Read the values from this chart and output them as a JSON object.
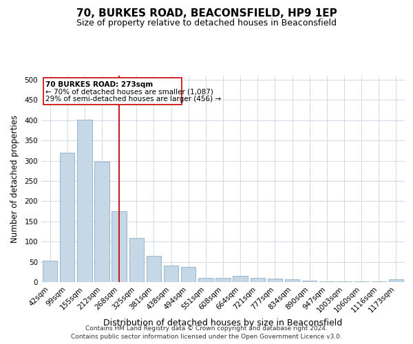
{
  "title": "70, BURKES ROAD, BEACONSFIELD, HP9 1EP",
  "subtitle": "Size of property relative to detached houses in Beaconsfield",
  "xlabel": "Distribution of detached houses by size in Beaconsfield",
  "ylabel": "Number of detached properties",
  "footnote1": "Contains HM Land Registry data © Crown copyright and database right 2024.",
  "footnote2": "Contains public sector information licensed under the Open Government Licence v3.0.",
  "categories": [
    "42sqm",
    "99sqm",
    "155sqm",
    "212sqm",
    "268sqm",
    "325sqm",
    "381sqm",
    "438sqm",
    "494sqm",
    "551sqm",
    "608sqm",
    "664sqm",
    "721sqm",
    "777sqm",
    "834sqm",
    "890sqm",
    "947sqm",
    "1003sqm",
    "1060sqm",
    "1116sqm",
    "1173sqm"
  ],
  "values": [
    52,
    320,
    401,
    298,
    175,
    108,
    65,
    40,
    37,
    10,
    10,
    15,
    10,
    9,
    6,
    3,
    2,
    1,
    1,
    1,
    6
  ],
  "bar_color": "#c5d8e8",
  "bar_edgecolor": "#a0b8cc",
  "bar_linewidth": 0.8,
  "vline_x_index": 4,
  "vline_color": "#cc0000",
  "annotation_line1": "70 BURKES ROAD: 273sqm",
  "annotation_line2": "← 70% of detached houses are smaller (1,087)",
  "annotation_line3": "29% of semi-detached houses are larger (456) →",
  "annotation_box_color": "#cc0000",
  "ylim": [
    0,
    510
  ],
  "yticks": [
    0,
    50,
    100,
    150,
    200,
    250,
    300,
    350,
    400,
    450,
    500
  ],
  "background_color": "#ffffff",
  "grid_color": "#d0d8e8",
  "title_fontsize": 11,
  "subtitle_fontsize": 9,
  "xlabel_fontsize": 9,
  "ylabel_fontsize": 8.5,
  "tick_fontsize": 7.5,
  "annotation_fontsize": 7.5,
  "footnote_fontsize": 6.5
}
